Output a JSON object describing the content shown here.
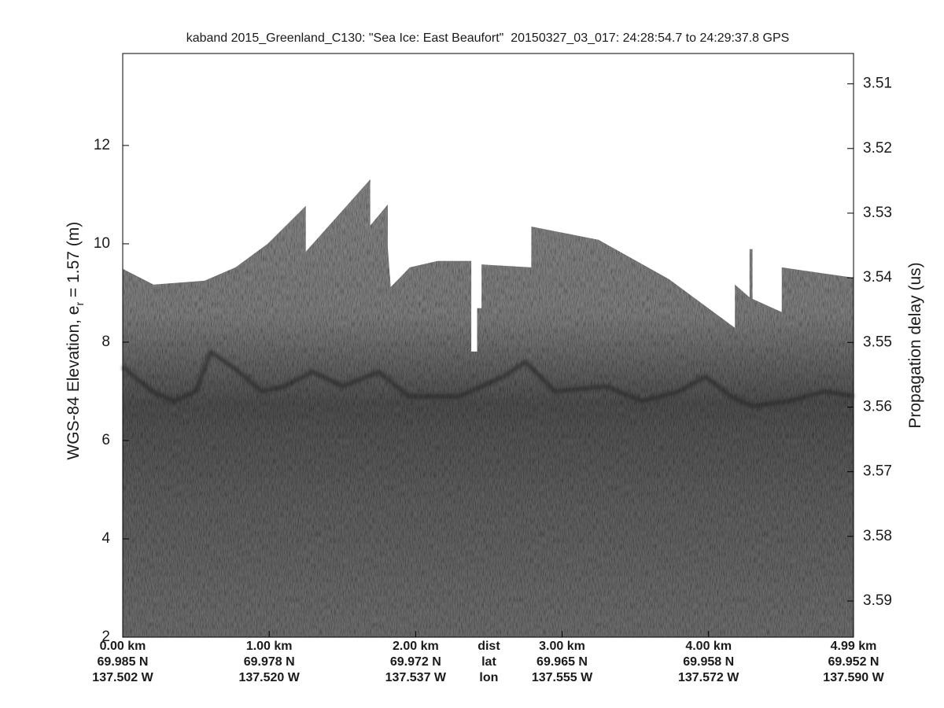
{
  "chart_data": {
    "type": "echogram",
    "title": "kaband 2015_Greenland_C130: \"Sea Ice: East Beaufort\"  20150327_03_017: 24:28:54.7 to 24:29:37.8 GPS",
    "y_label": {
      "main": "WGS-84 Elevation, e",
      "sub": "r",
      "end": " = 1.57 (m)"
    },
    "y2_label": "Propagation delay (us)",
    "xlim": [
      0,
      4.99
    ],
    "xticks": [
      {
        "value": 0,
        "label": "0.00 km"
      },
      {
        "value": 1,
        "label": "1.00 km"
      },
      {
        "value": 2,
        "label": "2.00 km"
      },
      {
        "value": 3,
        "label": "3.00 km"
      },
      {
        "value": 4,
        "label": "4.00 km"
      },
      {
        "value": 4.99,
        "label": "4.99 km"
      }
    ],
    "xtick_lat": [
      "69.985 N",
      "69.978 N",
      "69.972 N",
      "69.965 N",
      "69.958 N",
      "69.952 N"
    ],
    "xtick_lon": [
      "137.502 W",
      "137.520 W",
      "137.537 W",
      "137.555 W",
      "137.572 W",
      "137.590 W"
    ],
    "axis_row_labels": [
      "dist",
      "lat",
      "lon"
    ],
    "ylim": [
      2,
      13.87
    ],
    "yticks": [
      2,
      4,
      6,
      8,
      10,
      12
    ],
    "y2lim": [
      3.5956,
      3.5053
    ],
    "y2ticks": [
      3.51,
      3.52,
      3.53,
      3.54,
      3.55,
      3.56,
      3.57,
      3.58,
      3.59
    ],
    "series": [
      {
        "color": "#767676",
        "x": [
          0,
          0.21,
          0.56,
          0.77,
          0.99,
          1.25,
          1.25,
          1.69,
          1.69,
          1.81,
          1.81,
          1.83,
          1.96,
          2.15,
          2.38,
          2.38,
          2.42,
          2.42,
          2.45,
          2.45,
          2.79,
          2.79,
          3.25,
          3.73,
          4.18,
          4.18,
          4.28,
          4.28,
          4.3,
          4.3,
          4.5,
          4.5,
          4.99
        ],
        "values": [
          9.49,
          9.17,
          9.25,
          9.52,
          10.0,
          10.77,
          9.84,
          11.31,
          10.37,
          10.8,
          9.92,
          9.12,
          9.52,
          9.65,
          9.65,
          7.81,
          7.81,
          8.69,
          8.69,
          9.58,
          9.52,
          10.35,
          10.08,
          9.28,
          8.29,
          9.17,
          8.91,
          9.89,
          9.89,
          8.88,
          8.61,
          9.52,
          9.31
        ]
      },
      {
        "color": "#262626",
        "x": [
          0,
          0.2,
          0.35,
          0.5,
          0.6,
          0.75,
          0.95,
          1.1,
          1.3,
          1.5,
          1.75,
          1.95,
          2.3,
          2.6,
          2.75,
          2.95,
          3.3,
          3.55,
          3.8,
          3.98,
          4.15,
          4.3,
          4.55,
          4.8,
          4.99
        ],
        "values": [
          7.5,
          7.0,
          6.8,
          7.0,
          7.8,
          7.5,
          7.0,
          7.1,
          7.4,
          7.1,
          7.4,
          6.9,
          6.9,
          7.3,
          7.6,
          7.0,
          7.1,
          6.8,
          7.0,
          7.3,
          6.9,
          6.7,
          6.8,
          7.0,
          6.9
        ]
      }
    ]
  }
}
